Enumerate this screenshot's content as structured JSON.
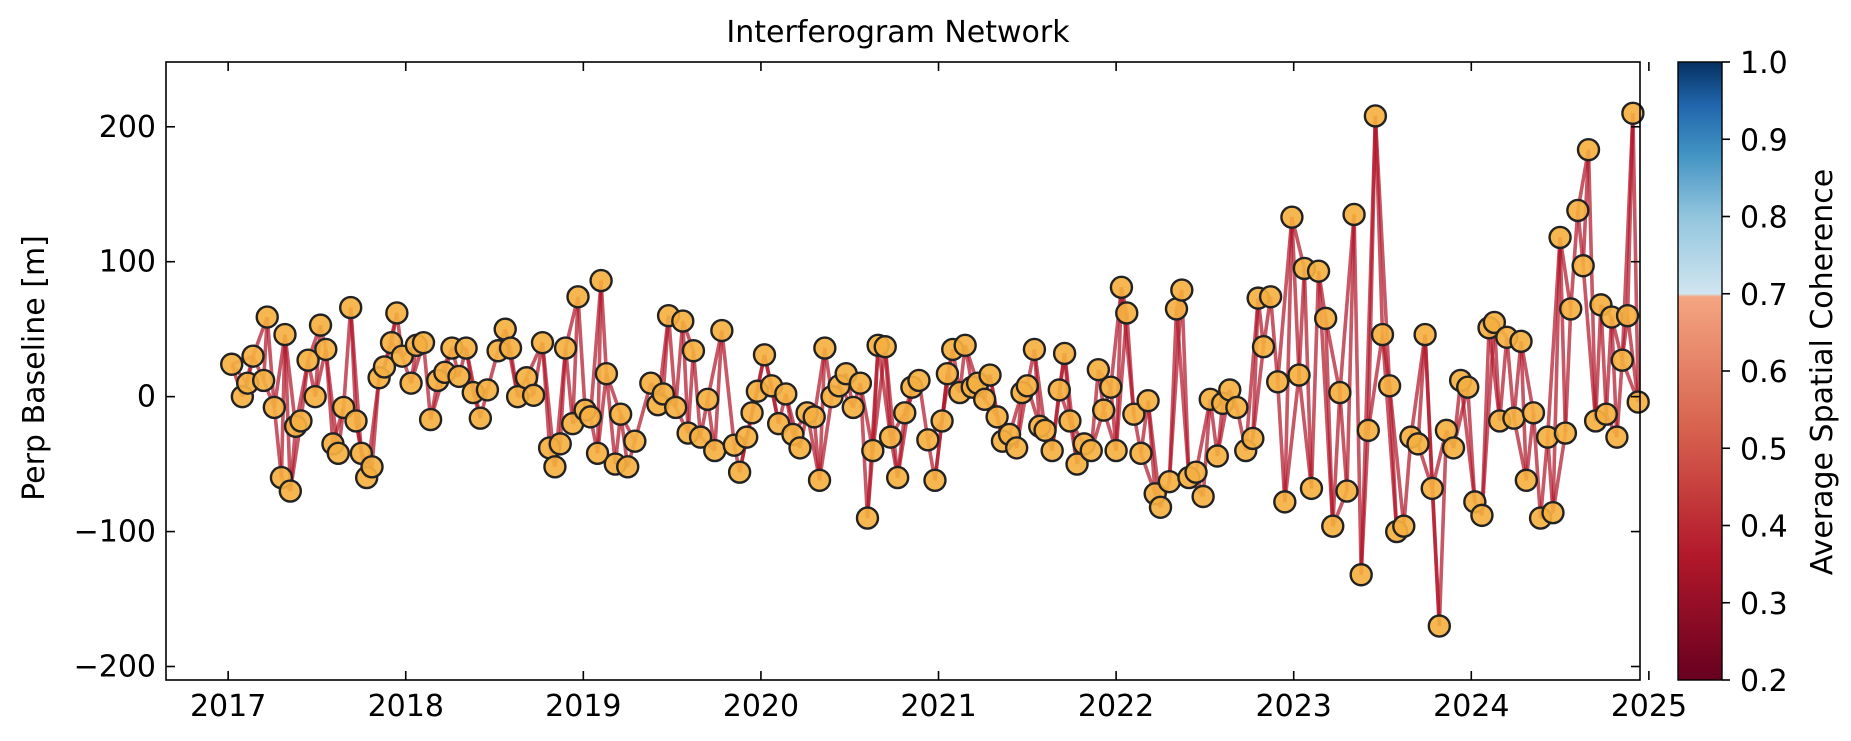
{
  "chart_data": {
    "type": "scatter",
    "title": "Interferogram Network",
    "xlabel": "",
    "ylabel": "Perp Baseline [m]",
    "xlim": [
      2016.65,
      2024.95
    ],
    "ylim": [
      -210,
      248
    ],
    "x_ticks": [
      2017,
      2018,
      2019,
      2020,
      2021,
      2022,
      2023,
      2024,
      2025
    ],
    "y_ticks": [
      -200,
      -100,
      0,
      100,
      200
    ],
    "y_tick_labels": [
      "−200",
      "−100",
      "0",
      "100",
      "200"
    ],
    "colorbar": {
      "label": "Average Spatial Coherence",
      "range": [
        0.2,
        1.0
      ],
      "ticks": [
        0.2,
        0.3,
        0.4,
        0.5,
        0.6,
        0.7,
        0.8,
        0.9,
        1.0
      ],
      "tick_labels": [
        "0.2",
        "0.3",
        "0.4",
        "0.5",
        "0.6",
        "0.7",
        "0.8",
        "0.9",
        "1.0"
      ],
      "colors": [
        "#67001f",
        "#b2182b",
        "#d6604d",
        "#f4a582",
        "#d1e5f0",
        "#92c5de",
        "#4393c3",
        "#2166ac",
        "#053061"
      ]
    },
    "marker_color": "#f5b041",
    "edge_color": "#b2182b",
    "acquisitions": [
      [
        2017.02,
        24
      ],
      [
        2017.08,
        0
      ],
      [
        2017.11,
        10
      ],
      [
        2017.14,
        30
      ],
      [
        2017.2,
        12
      ],
      [
        2017.22,
        59
      ],
      [
        2017.26,
        -8
      ],
      [
        2017.3,
        -60
      ],
      [
        2017.32,
        46
      ],
      [
        2017.35,
        -70
      ],
      [
        2017.38,
        -22
      ],
      [
        2017.41,
        -18
      ],
      [
        2017.45,
        27
      ],
      [
        2017.49,
        0
      ],
      [
        2017.52,
        53
      ],
      [
        2017.55,
        35
      ],
      [
        2017.59,
        -35
      ],
      [
        2017.62,
        -42
      ],
      [
        2017.65,
        -8
      ],
      [
        2017.69,
        66
      ],
      [
        2017.72,
        -18
      ],
      [
        2017.75,
        -42
      ],
      [
        2017.78,
        -60
      ],
      [
        2017.81,
        -52
      ],
      [
        2017.85,
        14
      ],
      [
        2017.88,
        22
      ],
      [
        2017.92,
        40
      ],
      [
        2017.95,
        62
      ],
      [
        2017.98,
        30
      ],
      [
        2018.03,
        10
      ],
      [
        2018.06,
        38
      ],
      [
        2018.1,
        40
      ],
      [
        2018.14,
        -17
      ],
      [
        2018.18,
        12
      ],
      [
        2018.22,
        18
      ],
      [
        2018.26,
        36
      ],
      [
        2018.3,
        15
      ],
      [
        2018.34,
        36
      ],
      [
        2018.38,
        3
      ],
      [
        2018.42,
        -16
      ],
      [
        2018.46,
        5
      ],
      [
        2018.52,
        34
      ],
      [
        2018.56,
        50
      ],
      [
        2018.59,
        36
      ],
      [
        2018.63,
        0
      ],
      [
        2018.68,
        14
      ],
      [
        2018.72,
        1
      ],
      [
        2018.77,
        40
      ],
      [
        2018.81,
        -38
      ],
      [
        2018.84,
        -52
      ],
      [
        2018.87,
        -35
      ],
      [
        2018.9,
        36
      ],
      [
        2018.94,
        -20
      ],
      [
        2018.97,
        74
      ],
      [
        2019.01,
        -10
      ],
      [
        2019.04,
        -15
      ],
      [
        2019.08,
        -42
      ],
      [
        2019.1,
        86
      ],
      [
        2019.13,
        17
      ],
      [
        2019.18,
        -50
      ],
      [
        2019.21,
        -13
      ],
      [
        2019.25,
        -52
      ],
      [
        2019.29,
        -33
      ],
      [
        2019.38,
        10
      ],
      [
        2019.42,
        -6
      ],
      [
        2019.45,
        2
      ],
      [
        2019.48,
        60
      ],
      [
        2019.52,
        -8
      ],
      [
        2019.56,
        56
      ],
      [
        2019.59,
        -27
      ],
      [
        2019.62,
        34
      ],
      [
        2019.66,
        -30
      ],
      [
        2019.7,
        -2
      ],
      [
        2019.74,
        -40
      ],
      [
        2019.78,
        49
      ],
      [
        2019.85,
        -36
      ],
      [
        2019.88,
        -56
      ],
      [
        2019.92,
        -30
      ],
      [
        2019.95,
        -12
      ],
      [
        2019.98,
        4
      ],
      [
        2020.02,
        31
      ],
      [
        2020.06,
        8
      ],
      [
        2020.1,
        -20
      ],
      [
        2020.14,
        2
      ],
      [
        2020.18,
        -28
      ],
      [
        2020.22,
        -38
      ],
      [
        2020.26,
        -12
      ],
      [
        2020.3,
        -15
      ],
      [
        2020.33,
        -62
      ],
      [
        2020.36,
        36
      ],
      [
        2020.4,
        0
      ],
      [
        2020.44,
        8
      ],
      [
        2020.48,
        17
      ],
      [
        2020.52,
        -8
      ],
      [
        2020.56,
        10
      ],
      [
        2020.6,
        -90
      ],
      [
        2020.63,
        -40
      ],
      [
        2020.66,
        38
      ],
      [
        2020.7,
        37
      ],
      [
        2020.73,
        -30
      ],
      [
        2020.77,
        -60
      ],
      [
        2020.81,
        -12
      ],
      [
        2020.85,
        7
      ],
      [
        2020.89,
        12
      ],
      [
        2020.94,
        -32
      ],
      [
        2020.98,
        -62
      ],
      [
        2021.02,
        -18
      ],
      [
        2021.05,
        17
      ],
      [
        2021.08,
        35
      ],
      [
        2021.12,
        3
      ],
      [
        2021.15,
        38
      ],
      [
        2021.19,
        7
      ],
      [
        2021.22,
        10
      ],
      [
        2021.26,
        -2
      ],
      [
        2021.29,
        16
      ],
      [
        2021.33,
        -15
      ],
      [
        2021.36,
        -33
      ],
      [
        2021.4,
        -28
      ],
      [
        2021.44,
        -38
      ],
      [
        2021.47,
        3
      ],
      [
        2021.5,
        8
      ],
      [
        2021.54,
        35
      ],
      [
        2021.57,
        -22
      ],
      [
        2021.6,
        -25
      ],
      [
        2021.64,
        -40
      ],
      [
        2021.68,
        5
      ],
      [
        2021.71,
        32
      ],
      [
        2021.74,
        -18
      ],
      [
        2021.78,
        -50
      ],
      [
        2021.82,
        -35
      ],
      [
        2021.86,
        -40
      ],
      [
        2021.9,
        20
      ],
      [
        2021.93,
        -10
      ],
      [
        2021.97,
        7
      ],
      [
        2022.0,
        -40
      ],
      [
        2022.03,
        81
      ],
      [
        2022.06,
        62
      ],
      [
        2022.1,
        -13
      ],
      [
        2022.14,
        -42
      ],
      [
        2022.18,
        -3
      ],
      [
        2022.22,
        -72
      ],
      [
        2022.25,
        -82
      ],
      [
        2022.3,
        -63
      ],
      [
        2022.34,
        65
      ],
      [
        2022.37,
        79
      ],
      [
        2022.41,
        -60
      ],
      [
        2022.45,
        -56
      ],
      [
        2022.49,
        -74
      ],
      [
        2022.53,
        -2
      ],
      [
        2022.57,
        -44
      ],
      [
        2022.6,
        -5
      ],
      [
        2022.64,
        5
      ],
      [
        2022.68,
        -8
      ],
      [
        2022.73,
        -40
      ],
      [
        2022.77,
        -31
      ],
      [
        2022.8,
        73
      ],
      [
        2022.83,
        37
      ],
      [
        2022.87,
        74
      ],
      [
        2022.91,
        11
      ],
      [
        2022.95,
        -78
      ],
      [
        2022.99,
        133
      ],
      [
        2023.03,
        16
      ],
      [
        2023.06,
        95
      ],
      [
        2023.1,
        -68
      ],
      [
        2023.14,
        93
      ],
      [
        2023.18,
        58
      ],
      [
        2023.22,
        -96
      ],
      [
        2023.26,
        3
      ],
      [
        2023.3,
        -70
      ],
      [
        2023.34,
        135
      ],
      [
        2023.38,
        -132
      ],
      [
        2023.42,
        -25
      ],
      [
        2023.46,
        208
      ],
      [
        2023.5,
        46
      ],
      [
        2023.54,
        8
      ],
      [
        2023.58,
        -100
      ],
      [
        2023.62,
        -96
      ],
      [
        2023.66,
        -30
      ],
      [
        2023.7,
        -35
      ],
      [
        2023.74,
        46
      ],
      [
        2023.78,
        -68
      ],
      [
        2023.82,
        -170
      ],
      [
        2023.86,
        -25
      ],
      [
        2023.9,
        -38
      ],
      [
        2023.94,
        12
      ],
      [
        2023.98,
        7
      ],
      [
        2024.02,
        -78
      ],
      [
        2024.06,
        -88
      ],
      [
        2024.1,
        51
      ],
      [
        2024.13,
        55
      ],
      [
        2024.16,
        -18
      ],
      [
        2024.2,
        44
      ],
      [
        2024.24,
        -16
      ],
      [
        2024.28,
        41
      ],
      [
        2024.31,
        -62
      ],
      [
        2024.35,
        -12
      ],
      [
        2024.39,
        -90
      ],
      [
        2024.43,
        -30
      ],
      [
        2024.46,
        -86
      ],
      [
        2024.5,
        118
      ],
      [
        2024.53,
        -27
      ],
      [
        2024.56,
        65
      ],
      [
        2024.6,
        138
      ],
      [
        2024.63,
        97
      ],
      [
        2024.66,
        183
      ],
      [
        2024.7,
        -18
      ],
      [
        2024.73,
        68
      ],
      [
        2024.76,
        -13
      ],
      [
        2024.79,
        59
      ],
      [
        2024.82,
        -30
      ],
      [
        2024.85,
        27
      ],
      [
        2024.88,
        60
      ],
      [
        2024.91,
        210
      ],
      [
        2024.94,
        -4
      ]
    ]
  }
}
